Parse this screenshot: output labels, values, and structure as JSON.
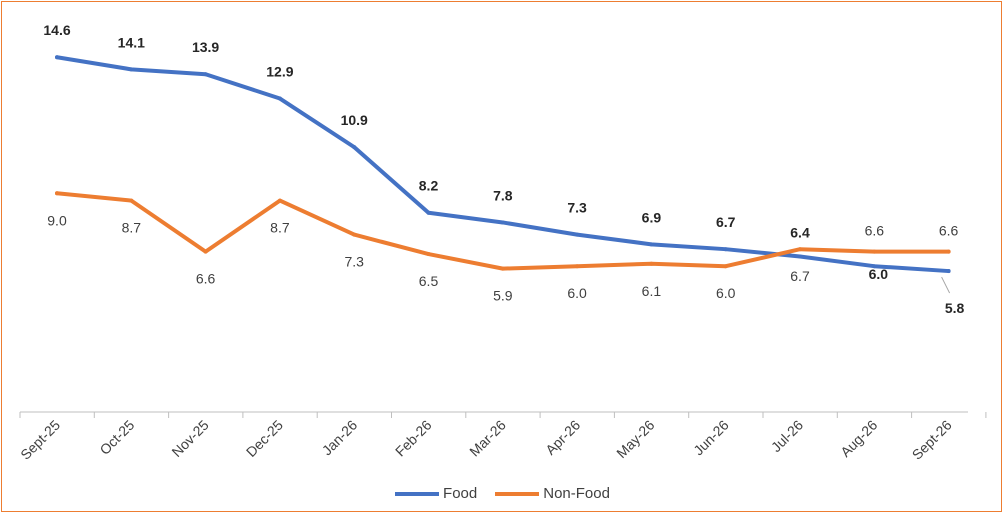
{
  "chart_data": {
    "type": "line",
    "categories": [
      "Sept-25",
      "Oct-25",
      "Nov-25",
      "Dec-25",
      "Jan-26",
      "Feb-26",
      "Mar-26",
      "Apr-26",
      "May-26",
      "Jun-26",
      "Jul-26",
      "Aug-26",
      "Sept-26"
    ],
    "series": [
      {
        "name": "Food",
        "color": "#4472C4",
        "values": [
          14.6,
          14.1,
          13.9,
          12.9,
          10.9,
          8.2,
          7.8,
          7.3,
          6.9,
          6.7,
          6.4,
          6.0,
          5.8
        ],
        "labels": [
          "14.6",
          "14.1",
          "13.9",
          "12.9",
          "10.9",
          "8.2",
          "7.8",
          "7.3",
          "6.9",
          "6.7",
          "6.4",
          "6.0",
          "5.8"
        ]
      },
      {
        "name": "Non-Food",
        "color": "#ED7D31",
        "values": [
          9.0,
          8.7,
          6.6,
          8.7,
          7.3,
          6.5,
          5.9,
          6.0,
          6.1,
          6.0,
          6.7,
          6.6,
          6.6
        ],
        "labels": [
          "9.0",
          "8.7",
          "6.6",
          "8.7",
          "7.3",
          "6.5",
          "5.9",
          "6.0",
          "6.1",
          "6.0",
          "6.7",
          "6.6",
          "6.6"
        ]
      }
    ],
    "ylim": [
      0,
      17
    ],
    "grid": false,
    "legend": "bottom"
  }
}
